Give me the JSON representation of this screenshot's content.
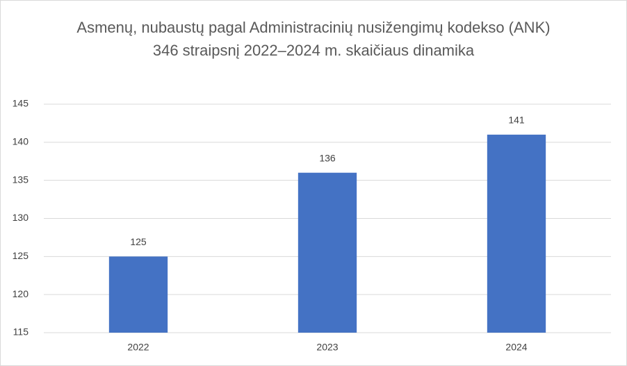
{
  "chart_data": {
    "type": "bar",
    "title": "Asmenų, nubaustų pagal Administracinių nusižengimų kodekso (ANK) 346 straipsnį 2022–2024 m. skaičiaus dinamika",
    "categories": [
      "2022",
      "2023",
      "2024"
    ],
    "values": [
      125,
      136,
      141
    ],
    "color": "#4472c4",
    "ylim": [
      115,
      145
    ],
    "yticks": [
      115,
      120,
      125,
      130,
      135,
      140,
      145
    ],
    "grid": true
  }
}
